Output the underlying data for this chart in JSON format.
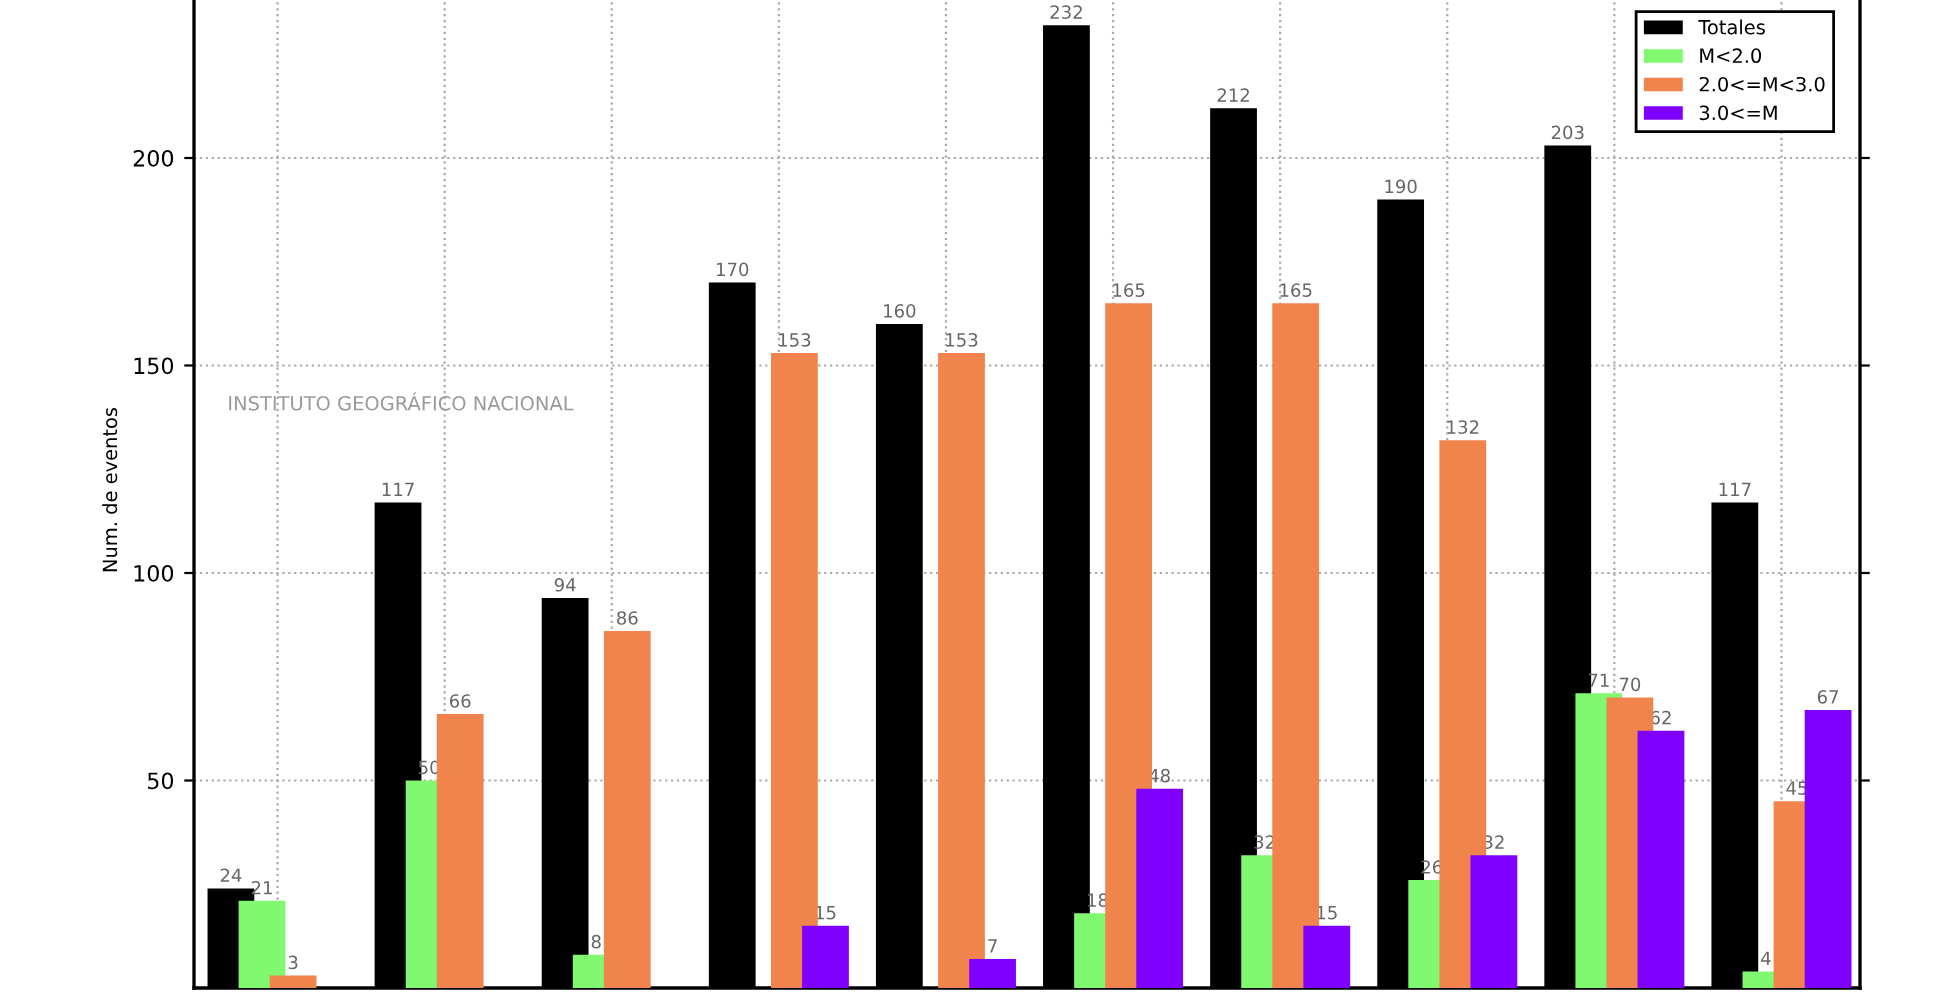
{
  "chart_data": {
    "type": "bar",
    "ylabel": "Num. de eventos",
    "categories": [
      null,
      null,
      null,
      null,
      null,
      null,
      null,
      null,
      null,
      null
    ],
    "series": [
      {
        "name": "Totales",
        "color": "#000000",
        "values": [
          24,
          117,
          94,
          170,
          160,
          232,
          212,
          190,
          203,
          117
        ]
      },
      {
        "name": "M<2.0",
        "color": "#80f870",
        "values": [
          21,
          50,
          8,
          null,
          null,
          18,
          32,
          26,
          71,
          4
        ]
      },
      {
        "name": "2.0<=M<3.0",
        "color": "#f0844c",
        "values": [
          3,
          66,
          86,
          153,
          153,
          165,
          165,
          132,
          70,
          45
        ]
      },
      {
        "name": "3.0<=M",
        "color": "#8000ff",
        "values": [
          null,
          null,
          null,
          15,
          7,
          48,
          15,
          32,
          62,
          67
        ]
      }
    ],
    "ylim": [
      0,
      240
    ],
    "yticks": [
      50,
      100,
      150,
      200
    ],
    "grid": true,
    "legend": "top right",
    "data_labels": true,
    "annotations": [
      "INSTITUTO GEOGRÁFICO NACIONAL"
    ]
  }
}
